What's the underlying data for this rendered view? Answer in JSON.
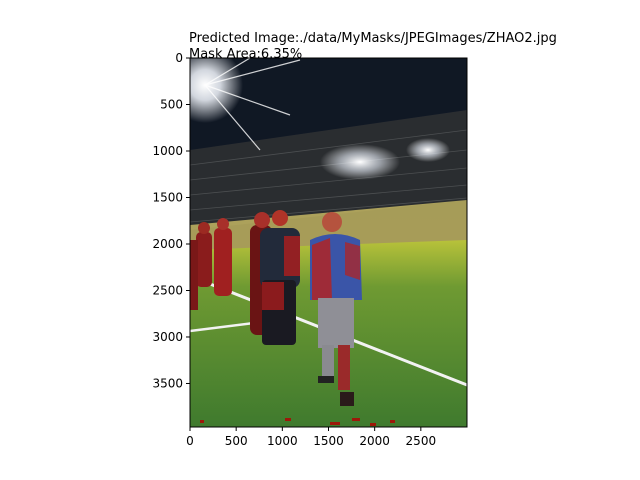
{
  "chart_data": {
    "type": "image",
    "title_line1": "Predicted Image:./data/MyMasks/JPEGImages/ZHAO2.jpg",
    "title_line2": " Mask Area:6.35%",
    "image_width": 3000,
    "image_height": 3968,
    "xlim": [
      0,
      3000
    ],
    "ylim": [
      3968,
      0
    ],
    "x_ticks": [
      0,
      500,
      1000,
      1500,
      2000,
      2500
    ],
    "y_ticks": [
      0,
      500,
      1000,
      1500,
      2000,
      2500,
      3000,
      3500
    ],
    "overlay_color": "#b40000",
    "image_description": "stadium pitch at night with floodlights, several people standing on the grass, red segmentation mask overlaid on the people"
  }
}
